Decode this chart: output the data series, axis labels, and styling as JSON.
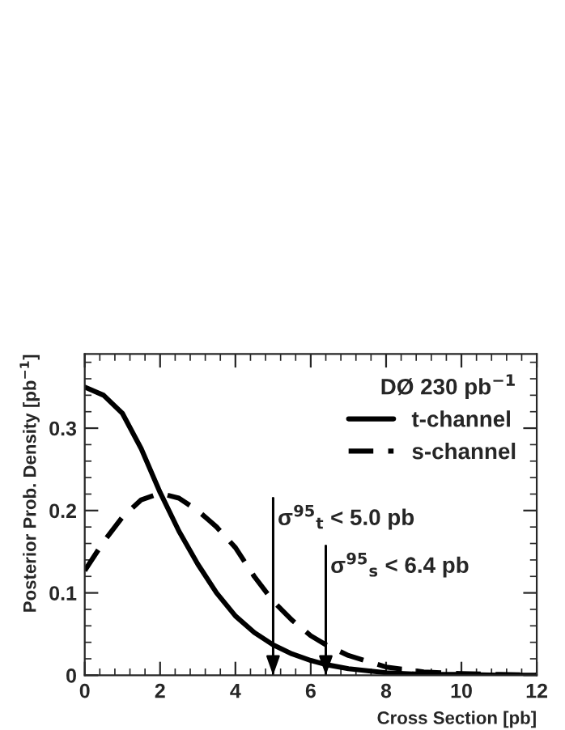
{
  "chart_data": {
    "type": "line",
    "xlabel": "Cross Section [pb]",
    "ylabel": "Posterior Prob. Density [pb$^{−1}$]",
    "legend_title": "DØ 230 pb$^{−1}$",
    "legend": "top right",
    "x": [
      0,
      0.5,
      1,
      1.5,
      2,
      2.5,
      3,
      3.5,
      4,
      4.5,
      5,
      5.5,
      6,
      6.4,
      7,
      8,
      9,
      10,
      11,
      12
    ],
    "series": [
      {
        "name": "t-channel",
        "color": "#000000",
        "line_style": "solid",
        "values": [
          0.35,
          0.34,
          0.318,
          0.275,
          0.222,
          0.175,
          0.135,
          0.1,
          0.072,
          0.052,
          0.037,
          0.026,
          0.018,
          0.013,
          0.008,
          0.003,
          0.001,
          0.001,
          0,
          0
        ]
      },
      {
        "name": "s-channel",
        "color": "#000000",
        "line_style": "dashed",
        "values": [
          0.127,
          0.162,
          0.192,
          0.213,
          0.221,
          0.215,
          0.2,
          0.18,
          0.155,
          0.12,
          0.09,
          0.067,
          0.048,
          0.037,
          0.024,
          0.01,
          0.004,
          0.002,
          0.001,
          0
        ]
      }
    ],
    "ref_lines": [
      {
        "axis": "x",
        "value": 5.0,
        "label": "σ$^{95}$$_{t}$ < 5.0 pb",
        "color": "#000000"
      },
      {
        "axis": "x",
        "value": 6.4,
        "label": "σ$^{95}$$_{s}$ < 6.4 pb",
        "color": "#000000"
      }
    ],
    "xlim": [
      0,
      12
    ],
    "xticks": [
      0,
      2,
      4,
      6,
      8,
      10,
      12
    ],
    "ylim": [
      0,
      0.39
    ],
    "yticks": [
      0,
      0.1,
      0.2,
      0.3
    ],
    "grid": false
  }
}
